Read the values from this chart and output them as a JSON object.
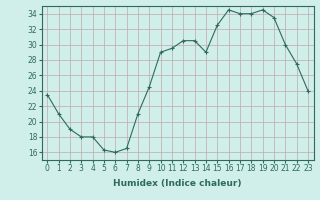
{
  "x": [
    0,
    1,
    2,
    3,
    4,
    5,
    6,
    7,
    8,
    9,
    10,
    11,
    12,
    13,
    14,
    15,
    16,
    17,
    18,
    19,
    20,
    21,
    22,
    23
  ],
  "y": [
    23.5,
    21,
    19,
    18,
    18,
    16.3,
    16,
    16.5,
    21,
    24.5,
    29,
    29.5,
    30.5,
    30.5,
    29,
    32.5,
    34.5,
    34,
    34,
    34.5,
    33.5,
    30,
    27.5,
    24
  ],
  "line_color": "#2e6b5e",
  "marker": "+",
  "bg_color": "#d0eeea",
  "plot_bg_color": "#d0eeea",
  "grid_color": "#c0a8a8",
  "xlabel": "Humidex (Indice chaleur)",
  "xlim": [
    -0.5,
    23.5
  ],
  "ylim": [
    15,
    35
  ],
  "yticks": [
    16,
    18,
    20,
    22,
    24,
    26,
    28,
    30,
    32,
    34
  ],
  "xticks": [
    0,
    1,
    2,
    3,
    4,
    5,
    6,
    7,
    8,
    9,
    10,
    11,
    12,
    13,
    14,
    15,
    16,
    17,
    18,
    19,
    20,
    21,
    22,
    23
  ],
  "label_fontsize": 6.5,
  "tick_fontsize": 5.5
}
